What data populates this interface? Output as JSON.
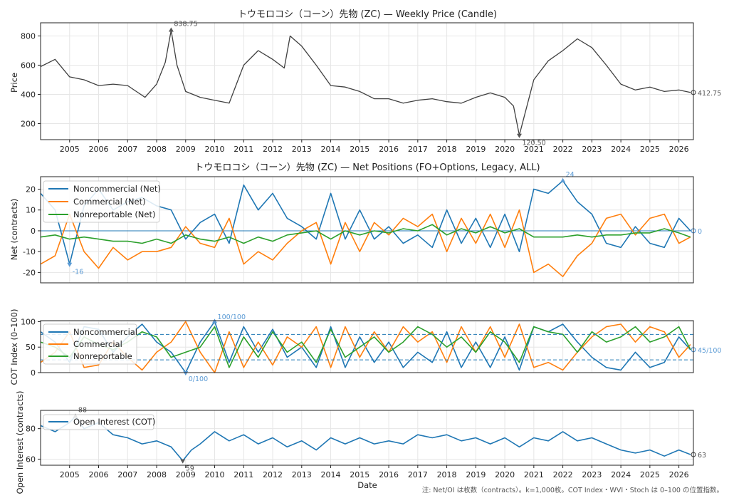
{
  "figure": {
    "xlabel": "Date",
    "note": "注: Net/OI は枚数（contracts）。k=1,000枚。COT Index・WVI・Stoch は 0–100 の位置指数。"
  },
  "colors": {
    "price": "#404040",
    "noncommercial": "#1f77b4",
    "commercial": "#ff7f0e",
    "nonreportable": "#2ca02c",
    "open_interest": "#1f77b4",
    "grid": "#e6e6e6",
    "annotation_blue": "#5b9bd5",
    "annotation_gray": "#555555"
  },
  "x_axis": {
    "range": [
      "2004-01",
      "2026-06"
    ],
    "tick_labels": [
      "2005",
      "2006",
      "2007",
      "2008",
      "2009",
      "2010",
      "2011",
      "2012",
      "2013",
      "2014",
      "2015",
      "2016",
      "2017",
      "2018",
      "2019",
      "2020",
      "2021",
      "2022",
      "2023",
      "2024",
      "2025",
      "2026"
    ]
  },
  "chart_data": [
    {
      "type": "line",
      "panel": "price",
      "title": "トウモロコシ（コーン）先物 (ZC) — Weekly Price (Candle)",
      "ylabel": "Price",
      "ylim": [
        90,
        890
      ],
      "yticks": [
        200,
        400,
        600,
        800
      ],
      "x_values": [
        2004.0,
        2004.5,
        2005.0,
        2005.5,
        2006.0,
        2006.5,
        2007.0,
        2007.3,
        2007.6,
        2008.0,
        2008.3,
        2008.5,
        2008.7,
        2009.0,
        2009.5,
        2010.0,
        2010.5,
        2011.0,
        2011.5,
        2012.0,
        2012.4,
        2012.6,
        2013.0,
        2013.5,
        2014.0,
        2014.5,
        2015.0,
        2015.5,
        2016.0,
        2016.5,
        2017.0,
        2017.5,
        2018.0,
        2018.5,
        2019.0,
        2019.5,
        2020.0,
        2020.3,
        2020.5,
        2021.0,
        2021.5,
        2022.0,
        2022.5,
        2023.0,
        2023.5,
        2024.0,
        2024.5,
        2025.0,
        2025.5,
        2026.0,
        2026.4
      ],
      "series": [
        {
          "values": [
            590,
            640,
            520,
            500,
            460,
            470,
            460,
            420,
            380,
            470,
            620,
            838.75,
            600,
            420,
            380,
            360,
            340,
            600,
            700,
            640,
            580,
            800,
            730,
            600,
            460,
            450,
            420,
            370,
            370,
            340,
            360,
            370,
            350,
            340,
            380,
            410,
            380,
            320,
            120.5,
            500,
            630,
            700,
            780,
            720,
            600,
            470,
            430,
            450,
            420,
            430,
            412.75
          ]
        }
      ],
      "annotations": {
        "max_label": "838.75",
        "min_label": "120.50",
        "last_label": "412.75"
      }
    },
    {
      "type": "line",
      "panel": "net_positions",
      "title": "トウモロコシ（コーン）先物 (ZC) — Net Positions (FO+Options, Legacy, ALL)",
      "ylabel": "Net (contracts)",
      "ylim": [
        -25,
        26
      ],
      "yticks": [
        -20,
        -10,
        0,
        10,
        20
      ],
      "x_values": [
        2004.0,
        2004.5,
        2005.0,
        2005.5,
        2006.0,
        2006.5,
        2007.0,
        2007.5,
        2008.0,
        2008.5,
        2009.0,
        2009.5,
        2010.0,
        2010.5,
        2011.0,
        2011.5,
        2012.0,
        2012.5,
        2013.0,
        2013.5,
        2014.0,
        2014.5,
        2015.0,
        2015.5,
        2016.0,
        2016.5,
        2017.0,
        2017.5,
        2018.0,
        2018.5,
        2019.0,
        2019.5,
        2020.0,
        2020.5,
        2021.0,
        2021.5,
        2022.0,
        2022.5,
        2023.0,
        2023.5,
        2024.0,
        2024.5,
        2025.0,
        2025.5,
        2026.0,
        2026.4
      ],
      "series": [
        {
          "name": "Noncommercial (Net)",
          "values": [
            18,
            10,
            -16,
            12,
            20,
            10,
            14,
            16,
            12,
            10,
            -4,
            4,
            8,
            -6,
            22,
            10,
            18,
            6,
            2,
            -4,
            18,
            -4,
            10,
            -4,
            2,
            -6,
            -2,
            -8,
            10,
            -6,
            6,
            -8,
            8,
            -10,
            20,
            18,
            24,
            14,
            8,
            -6,
            -8,
            2,
            -6,
            -8,
            6,
            0
          ]
        },
        {
          "name": "Commercial (Net)",
          "values": [
            -16,
            -12,
            8,
            -10,
            -18,
            -8,
            -14,
            -10,
            -10,
            -8,
            2,
            -6,
            -8,
            6,
            -16,
            -10,
            -14,
            -6,
            0,
            4,
            -16,
            4,
            -10,
            4,
            -2,
            6,
            2,
            8,
            -10,
            6,
            -6,
            8,
            -8,
            10,
            -20,
            -16,
            -22,
            -12,
            -6,
            6,
            8,
            -2,
            6,
            8,
            -6,
            -3
          ]
        },
        {
          "name": "Nonreportable (Net)",
          "values": [
            -3,
            -2,
            -4,
            -3,
            -4,
            -5,
            -5,
            -6,
            -4,
            -6,
            -2,
            -4,
            -5,
            -3,
            -6,
            -3,
            -5,
            -2,
            -1,
            0,
            -4,
            0,
            -2,
            0,
            -1,
            1,
            0,
            3,
            -2,
            1,
            -1,
            2,
            -1,
            1,
            -3,
            -3,
            -3,
            -2,
            -3,
            -2,
            -2,
            -1,
            -1,
            1,
            -1,
            -3
          ]
        }
      ],
      "annotations": {
        "max_label": "24",
        "min_label": "-16",
        "last_label": "0"
      }
    },
    {
      "type": "line",
      "panel": "cot_index",
      "ylabel": "COT Index (0–100)",
      "ylim": [
        0,
        102
      ],
      "yticks": [
        0,
        50,
        100
      ],
      "reference_lines": [
        75,
        25
      ],
      "x_values": [
        2004.0,
        2004.5,
        2005.0,
        2005.5,
        2006.0,
        2006.5,
        2007.0,
        2007.5,
        2008.0,
        2008.5,
        2009.0,
        2009.5,
        2010.0,
        2010.5,
        2011.0,
        2011.5,
        2012.0,
        2012.5,
        2013.0,
        2013.5,
        2014.0,
        2014.5,
        2015.0,
        2015.5,
        2016.0,
        2016.5,
        2017.0,
        2017.5,
        2018.0,
        2018.5,
        2019.0,
        2019.5,
        2020.0,
        2020.5,
        2021.0,
        2021.5,
        2022.0,
        2022.5,
        2023.0,
        2023.5,
        2024.0,
        2024.5,
        2025.0,
        2025.5,
        2026.0,
        2026.4
      ],
      "series": [
        {
          "name": "Noncommercial",
          "values": [
            80,
            60,
            20,
            90,
            85,
            40,
            70,
            95,
            60,
            40,
            0,
            60,
            100,
            20,
            90,
            40,
            85,
            30,
            50,
            10,
            90,
            10,
            70,
            20,
            60,
            10,
            40,
            20,
            80,
            10,
            60,
            10,
            70,
            5,
            90,
            80,
            95,
            60,
            30,
            10,
            5,
            40,
            10,
            20,
            70,
            45
          ]
        },
        {
          "name": "Commercial",
          "values": [
            20,
            40,
            80,
            10,
            15,
            60,
            30,
            5,
            40,
            60,
            100,
            40,
            0,
            80,
            10,
            60,
            15,
            70,
            50,
            90,
            10,
            90,
            30,
            80,
            40,
            90,
            60,
            80,
            20,
            90,
            40,
            90,
            30,
            95,
            10,
            20,
            5,
            40,
            70,
            90,
            95,
            60,
            90,
            80,
            30,
            55
          ]
        },
        {
          "name": "Nonreportable",
          "values": [
            60,
            50,
            30,
            70,
            55,
            45,
            60,
            80,
            70,
            30,
            40,
            50,
            90,
            10,
            70,
            30,
            80,
            40,
            60,
            20,
            85,
            30,
            50,
            70,
            40,
            60,
            90,
            75,
            50,
            70,
            40,
            80,
            60,
            20,
            90,
            80,
            75,
            40,
            80,
            60,
            70,
            90,
            60,
            70,
            90,
            45
          ]
        }
      ],
      "annotations": {
        "max_label": "100/100",
        "min_label": "0/100",
        "last_label": "45/100"
      }
    },
    {
      "type": "line",
      "panel": "open_interest",
      "ylabel": "Open Interest (contracts)",
      "ylim": [
        56,
        92
      ],
      "yticks": [
        60,
        80
      ],
      "x_values": [
        2004.0,
        2004.5,
        2005.0,
        2005.2,
        2005.5,
        2006.0,
        2006.5,
        2007.0,
        2007.5,
        2008.0,
        2008.5,
        2008.9,
        2009.2,
        2009.5,
        2010.0,
        2010.5,
        2011.0,
        2011.5,
        2012.0,
        2012.5,
        2013.0,
        2013.5,
        2014.0,
        2014.5,
        2015.0,
        2015.5,
        2016.0,
        2016.5,
        2017.0,
        2017.5,
        2018.0,
        2018.5,
        2019.0,
        2019.5,
        2020.0,
        2020.5,
        2021.0,
        2021.5,
        2022.0,
        2022.5,
        2023.0,
        2023.5,
        2024.0,
        2024.5,
        2025.0,
        2025.5,
        2026.0,
        2026.4
      ],
      "series": [
        {
          "name": "Open Interest (COT)",
          "values": [
            82,
            78,
            84,
            88,
            80,
            84,
            76,
            74,
            70,
            72,
            68,
            59,
            66,
            70,
            78,
            72,
            76,
            70,
            74,
            68,
            72,
            66,
            74,
            70,
            74,
            70,
            72,
            70,
            76,
            74,
            76,
            72,
            74,
            70,
            74,
            68,
            74,
            72,
            78,
            72,
            74,
            70,
            66,
            64,
            66,
            62,
            66,
            63
          ]
        }
      ],
      "annotations": {
        "max_label": "88",
        "min_label": "59",
        "last_label": "63"
      }
    }
  ]
}
